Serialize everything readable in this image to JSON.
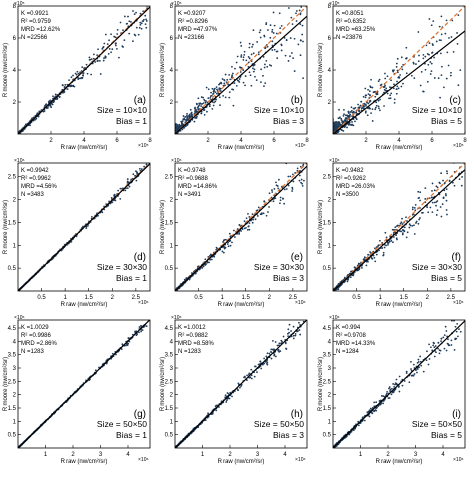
{
  "chart_data": [
    {
      "panel": "(a)",
      "type": "scatter",
      "stats": [
        "K =0.9921",
        "R² =0.9759",
        "MRD =12.62%",
        "N =22566"
      ],
      "size_label": "Size = 10×10",
      "bias_label": "Bias = 1",
      "xlim": [
        0,
        8
      ],
      "ylim": [
        0,
        8
      ],
      "exponent": "×10⁵",
      "xticks": [
        "2",
        "4",
        "6",
        "8"
      ],
      "yticks": [
        "2",
        "4",
        "6",
        "8"
      ],
      "xlabel": "R_raw (nw/cm²/sr)",
      "ylabel": "R_moore (nw/cm²/sr)",
      "one_to_one": true,
      "fit_slope": 0.9921,
      "spread": 0.18
    },
    {
      "panel": "(b)",
      "type": "scatter",
      "stats": [
        "K =0.9207",
        "R² =0.8296",
        "MRD =47.97%",
        "N =23166"
      ],
      "size_label": "Size = 10×10",
      "bias_label": "Bias = 3",
      "xlim": [
        0,
        8
      ],
      "ylim": [
        0,
        8
      ],
      "exponent": "×10⁵",
      "xticks": [
        "2",
        "4",
        "6",
        "8"
      ],
      "yticks": [
        "2",
        "4",
        "6",
        "8"
      ],
      "xlabel": "R_raw (nw/cm²/sr)",
      "ylabel": "R_moore (nw/cm²/sr)",
      "one_to_one": true,
      "fit_slope": 0.9207,
      "spread": 0.45
    },
    {
      "panel": "(c)",
      "type": "scatter",
      "stats": [
        "K =0.8051",
        "R² =0.6352",
        "MRD =63.25%",
        "N =23876"
      ],
      "size_label": "Size = 10×10",
      "bias_label": "Bias = 5",
      "xlim": [
        0,
        8
      ],
      "ylim": [
        0,
        8
      ],
      "exponent": "×10⁵",
      "xticks": [
        "2",
        "4",
        "6",
        "8"
      ],
      "yticks": [
        "2",
        "4",
        "6",
        "8"
      ],
      "xlabel": "R_raw (nw/cm²/sr)",
      "ylabel": "R_moore (nw/cm²/sr)",
      "one_to_one": true,
      "fit_slope": 0.8051,
      "spread": 0.6
    },
    {
      "panel": "(d)",
      "type": "scatter",
      "stats": [
        "K =0.9942",
        "R² =0.9962",
        "MRD =4.56%",
        "N =3483"
      ],
      "size_label": "Size = 30×30",
      "bias_label": "Bias = 1",
      "xlim": [
        0,
        2.8
      ],
      "ylim": [
        0,
        2.8
      ],
      "exponent": "×10⁶",
      "xticks": [
        "0.5",
        "1",
        "1.5",
        "2",
        "2.5"
      ],
      "yticks": [
        "0.5",
        "1",
        "1.5",
        "2",
        "2.5"
      ],
      "xlabel": "R_raw (nw/cm²/sr)",
      "ylabel": "R_moore (nw/cm²/sr)",
      "one_to_one": true,
      "fit_slope": 0.9942,
      "spread": 0.05
    },
    {
      "panel": "(e)",
      "type": "scatter",
      "stats": [
        "K =0.9748",
        "R² =0.9688",
        "MRD =14.86%",
        "N =3491"
      ],
      "size_label": "Size = 30×30",
      "bias_label": "Bias = 3",
      "xlim": [
        0,
        2.8
      ],
      "ylim": [
        0,
        2.8
      ],
      "exponent": "×10⁶",
      "xticks": [
        "0.5",
        "1",
        "1.5",
        "2",
        "2.5"
      ],
      "yticks": [
        "0.5",
        "1",
        "1.5",
        "2",
        "2.5"
      ],
      "xlabel": "R_raw (nw/cm²/sr)",
      "ylabel": "R_moore (nw/cm²/sr)",
      "one_to_one": true,
      "fit_slope": 0.9748,
      "spread": 0.15
    },
    {
      "panel": "(f)",
      "type": "scatter",
      "stats": [
        "K =0.9482",
        "R² =0.9262",
        "MRD =26.03%",
        "N =3500"
      ],
      "size_label": "Size = 30×30",
      "bias_label": "Bias = 5",
      "xlim": [
        0,
        2.8
      ],
      "ylim": [
        0,
        2.8
      ],
      "exponent": "×10⁶",
      "xticks": [
        "0.5",
        "1",
        "1.5",
        "2",
        "2.5"
      ],
      "yticks": [
        "0.5",
        "1",
        "1.5",
        "2",
        "2.5"
      ],
      "xlabel": "R_raw (nw/cm²/sr)",
      "ylabel": "R_moore (nw/cm²/sr)",
      "one_to_one": true,
      "fit_slope": 0.9482,
      "spread": 0.25
    },
    {
      "panel": "(g)",
      "type": "scatter",
      "stats": [
        "K =1.0029",
        "R² =0.9986",
        "MRD =2.86%",
        "N =1283"
      ],
      "size_label": "Size = 50×50",
      "bias_label": "Bias = 1",
      "xlim": [
        0,
        4.8
      ],
      "ylim": [
        0,
        4.8
      ],
      "exponent": "×10⁶",
      "xticks": [
        "1",
        "2",
        "3",
        "4"
      ],
      "yticks": [
        "0.5",
        "1",
        "1.5",
        "2",
        "2.5",
        "3",
        "3.5",
        "4",
        "4.5"
      ],
      "xlabel": "R_raw (nw/cm²/sr)",
      "ylabel": "R_moore (nw/cm²/sr)",
      "one_to_one": false,
      "fit_slope": 1.0029,
      "spread": 0.03
    },
    {
      "panel": "(h)",
      "type": "scatter",
      "stats": [
        "K =1.0012",
        "R² =0.9882",
        "MRD =8.58%",
        "N =1283"
      ],
      "size_label": "Size = 50×50",
      "bias_label": "Bias = 3",
      "xlim": [
        0,
        4.8
      ],
      "ylim": [
        0,
        4.8
      ],
      "exponent": "×10⁶",
      "xticks": [
        "1",
        "2",
        "3",
        "4"
      ],
      "yticks": [
        "0.5",
        "1",
        "1.5",
        "2",
        "2.5",
        "3",
        "3.5",
        "4",
        "4.5"
      ],
      "xlabel": "R_raw (nw/cm²/sr)",
      "ylabel": "R_moore (nw/cm²/sr)",
      "one_to_one": false,
      "fit_slope": 1.0012,
      "spread": 0.1
    },
    {
      "panel": "(i)",
      "type": "scatter",
      "stats": [
        "K =0.994",
        "R² =0.9708",
        "MRD =14.33%",
        "N =1284"
      ],
      "size_label": "Size = 50×50",
      "bias_label": "Bias = 5",
      "xlim": [
        0,
        4.8
      ],
      "ylim": [
        0,
        4.8
      ],
      "exponent": "×10⁶",
      "xticks": [
        "1",
        "2",
        "3",
        "4"
      ],
      "yticks": [
        "0.5",
        "1",
        "1.5",
        "2",
        "2.5",
        "3",
        "3.5",
        "4",
        "4.5"
      ],
      "xlabel": "R_raw (nw/cm²/sr)",
      "ylabel": "R_moore (nw/cm²/sr)",
      "one_to_one": false,
      "fit_slope": 0.994,
      "spread": 0.16
    }
  ],
  "colors": {
    "points": "#1f3b5a",
    "fit_line": "#000000",
    "one_to_one_line": "#e0702a",
    "axes": "#000000"
  }
}
